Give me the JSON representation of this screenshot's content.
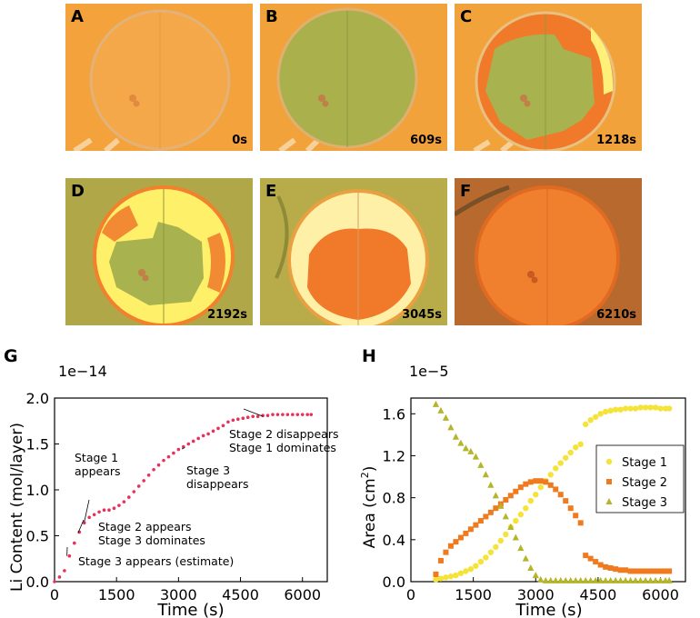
{
  "panels": [
    {
      "label": "A",
      "time": "0s"
    },
    {
      "label": "B",
      "time": "609s"
    },
    {
      "label": "C",
      "time": "1218s"
    },
    {
      "label": "D",
      "time": "2192s"
    },
    {
      "label": "E",
      "time": "3045s"
    },
    {
      "label": "F",
      "time": "6210s"
    }
  ],
  "colors": {
    "background_orange": "#f2a23a",
    "stage1": "#f5e33a",
    "stage2": "#f07a1e",
    "stage3": "#b5b52a",
    "liline": "#e8305a",
    "green_disk": "#a8b24e",
    "yellow_region": "#fff26a",
    "orange_disk": "#f07a2a"
  },
  "chart_data": [
    {
      "type": "scatter",
      "panel_label": "G",
      "exponent_label": "1e−14",
      "xlabel": "Time (s)",
      "ylabel": "Li Content (mol/layer)",
      "xlim": [
        0,
        6600
      ],
      "ylim": [
        0,
        2.0
      ],
      "xticks": [
        "0",
        "1500",
        "3000",
        "4500",
        "6000"
      ],
      "yticks": [
        "0.0",
        "0.5",
        "1.0",
        "1.5",
        "2.0"
      ],
      "series": [
        {
          "name": "Li content",
          "points": [
            [
              0,
              0.0
            ],
            [
              120,
              0.05
            ],
            [
              240,
              0.12
            ],
            [
              360,
              0.28
            ],
            [
              480,
              0.42
            ],
            [
              600,
              0.54
            ],
            [
              720,
              0.64
            ],
            [
              840,
              0.7
            ],
            [
              960,
              0.73
            ],
            [
              1080,
              0.76
            ],
            [
              1200,
              0.78
            ],
            [
              1320,
              0.78
            ],
            [
              1440,
              0.8
            ],
            [
              1560,
              0.83
            ],
            [
              1680,
              0.87
            ],
            [
              1800,
              0.92
            ],
            [
              1920,
              0.98
            ],
            [
              2040,
              1.04
            ],
            [
              2160,
              1.1
            ],
            [
              2280,
              1.16
            ],
            [
              2400,
              1.22
            ],
            [
              2520,
              1.27
            ],
            [
              2640,
              1.32
            ],
            [
              2760,
              1.36
            ],
            [
              2880,
              1.4
            ],
            [
              3000,
              1.44
            ],
            [
              3120,
              1.47
            ],
            [
              3240,
              1.5
            ],
            [
              3360,
              1.53
            ],
            [
              3480,
              1.56
            ],
            [
              3600,
              1.59
            ],
            [
              3720,
              1.61
            ],
            [
              3840,
              1.64
            ],
            [
              3960,
              1.67
            ],
            [
              4080,
              1.7
            ],
            [
              4200,
              1.74
            ],
            [
              4320,
              1.76
            ],
            [
              4440,
              1.77
            ],
            [
              4560,
              1.78
            ],
            [
              4680,
              1.79
            ],
            [
              4800,
              1.8
            ],
            [
              4920,
              1.8
            ],
            [
              5040,
              1.81
            ],
            [
              5160,
              1.81
            ],
            [
              5280,
              1.82
            ],
            [
              5400,
              1.82
            ],
            [
              5520,
              1.82
            ],
            [
              5640,
              1.82
            ],
            [
              5760,
              1.82
            ],
            [
              5880,
              1.82
            ],
            [
              6000,
              1.82
            ],
            [
              6120,
              1.82
            ],
            [
              6210,
              1.82
            ]
          ]
        }
      ],
      "annotations": [
        {
          "lines": [
            "Stage 1",
            "appears"
          ],
          "at": [
            720,
            0.65
          ]
        },
        {
          "lines": [
            "Stage 2 appears",
            "Stage 3 dominates"
          ],
          "at": [
            570,
            0.53
          ]
        },
        {
          "lines": [
            "Stage 3 appears (estimate)"
          ],
          "at": [
            300,
            0.28
          ]
        },
        {
          "lines": [
            "Stage 3",
            "disappears"
          ],
          "at": [
            3150,
            1.46
          ]
        },
        {
          "lines": [
            "Stage 2 disappears",
            "Stage 1 dominates"
          ],
          "at": [
            5050,
            1.8
          ]
        }
      ]
    },
    {
      "type": "scatter",
      "panel_label": "H",
      "exponent_label": "1e−5",
      "xlabel": "Time (s)",
      "ylabel": "Area (cm",
      "ylabel_sup": "2",
      "ylabel_end": ")",
      "xlim": [
        0,
        6600
      ],
      "ylim": [
        0,
        1.75
      ],
      "xticks": [
        "0",
        "1500",
        "3000",
        "4500",
        "6000"
      ],
      "yticks": [
        "0.0",
        "0.4",
        "0.8",
        "1.2",
        "1.6"
      ],
      "legend": "middle-right",
      "series": [
        {
          "name": "Stage 1",
          "marker": "circle",
          "points": [
            [
              600,
              0.02
            ],
            [
              720,
              0.03
            ],
            [
              840,
              0.04
            ],
            [
              960,
              0.05
            ],
            [
              1080,
              0.06
            ],
            [
              1200,
              0.08
            ],
            [
              1320,
              0.1
            ],
            [
              1440,
              0.12
            ],
            [
              1560,
              0.15
            ],
            [
              1680,
              0.19
            ],
            [
              1800,
              0.23
            ],
            [
              1920,
              0.28
            ],
            [
              2040,
              0.33
            ],
            [
              2160,
              0.39
            ],
            [
              2280,
              0.45
            ],
            [
              2400,
              0.52
            ],
            [
              2520,
              0.58
            ],
            [
              2640,
              0.64
            ],
            [
              2760,
              0.7
            ],
            [
              2880,
              0.77
            ],
            [
              3000,
              0.83
            ],
            [
              3120,
              0.9
            ],
            [
              3240,
              0.96
            ],
            [
              3360,
              1.02
            ],
            [
              3480,
              1.08
            ],
            [
              3600,
              1.13
            ],
            [
              3720,
              1.18
            ],
            [
              3840,
              1.23
            ],
            [
              3960,
              1.28
            ],
            [
              4080,
              1.31
            ],
            [
              4200,
              1.5
            ],
            [
              4320,
              1.54
            ],
            [
              4440,
              1.57
            ],
            [
              4560,
              1.6
            ],
            [
              4680,
              1.62
            ],
            [
              4800,
              1.63
            ],
            [
              4920,
              1.64
            ],
            [
              5040,
              1.64
            ],
            [
              5160,
              1.65
            ],
            [
              5280,
              1.65
            ],
            [
              5400,
              1.65
            ],
            [
              5520,
              1.66
            ],
            [
              5640,
              1.66
            ],
            [
              5760,
              1.66
            ],
            [
              5880,
              1.66
            ],
            [
              6000,
              1.65
            ],
            [
              6120,
              1.65
            ],
            [
              6210,
              1.65
            ]
          ]
        },
        {
          "name": "Stage 2",
          "marker": "square",
          "points": [
            [
              600,
              0.07
            ],
            [
              720,
              0.2
            ],
            [
              840,
              0.28
            ],
            [
              960,
              0.34
            ],
            [
              1080,
              0.38
            ],
            [
              1200,
              0.42
            ],
            [
              1320,
              0.46
            ],
            [
              1440,
              0.5
            ],
            [
              1560,
              0.54
            ],
            [
              1680,
              0.58
            ],
            [
              1800,
              0.62
            ],
            [
              1920,
              0.66
            ],
            [
              2040,
              0.7
            ],
            [
              2160,
              0.74
            ],
            [
              2280,
              0.78
            ],
            [
              2400,
              0.82
            ],
            [
              2520,
              0.86
            ],
            [
              2640,
              0.9
            ],
            [
              2760,
              0.93
            ],
            [
              2880,
              0.95
            ],
            [
              3000,
              0.96
            ],
            [
              3120,
              0.96
            ],
            [
              3240,
              0.95
            ],
            [
              3360,
              0.92
            ],
            [
              3480,
              0.88
            ],
            [
              3600,
              0.83
            ],
            [
              3720,
              0.77
            ],
            [
              3840,
              0.7
            ],
            [
              3960,
              0.63
            ],
            [
              4080,
              0.56
            ],
            [
              4200,
              0.25
            ],
            [
              4320,
              0.22
            ],
            [
              4440,
              0.19
            ],
            [
              4560,
              0.16
            ],
            [
              4680,
              0.14
            ],
            [
              4800,
              0.13
            ],
            [
              4920,
              0.12
            ],
            [
              5040,
              0.11
            ],
            [
              5160,
              0.11
            ],
            [
              5280,
              0.1
            ],
            [
              5400,
              0.1
            ],
            [
              5520,
              0.1
            ],
            [
              5640,
              0.1
            ],
            [
              5760,
              0.1
            ],
            [
              5880,
              0.1
            ],
            [
              6000,
              0.1
            ],
            [
              6120,
              0.1
            ],
            [
              6210,
              0.1
            ]
          ]
        },
        {
          "name": "Stage 3",
          "marker": "triangle",
          "points": [
            [
              600,
              1.69
            ],
            [
              720,
              1.63
            ],
            [
              840,
              1.56
            ],
            [
              960,
              1.47
            ],
            [
              1080,
              1.38
            ],
            [
              1200,
              1.32
            ],
            [
              1320,
              1.27
            ],
            [
              1440,
              1.24
            ],
            [
              1560,
              1.19
            ],
            [
              1680,
              1.11
            ],
            [
              1800,
              1.02
            ],
            [
              1920,
              0.92
            ],
            [
              2040,
              0.82
            ],
            [
              2160,
              0.72
            ],
            [
              2280,
              0.62
            ],
            [
              2400,
              0.52
            ],
            [
              2520,
              0.42
            ],
            [
              2640,
              0.32
            ],
            [
              2760,
              0.22
            ],
            [
              2880,
              0.13
            ],
            [
              3000,
              0.06
            ],
            [
              3120,
              0.02
            ],
            [
              3240,
              0.01
            ],
            [
              3360,
              0.01
            ],
            [
              3480,
              0.01
            ],
            [
              3600,
              0.01
            ],
            [
              3720,
              0.01
            ],
            [
              3840,
              0.01
            ],
            [
              3960,
              0.01
            ],
            [
              4080,
              0.01
            ],
            [
              4200,
              0.01
            ],
            [
              4320,
              0.01
            ],
            [
              4440,
              0.01
            ],
            [
              4560,
              0.01
            ],
            [
              4680,
              0.01
            ],
            [
              4800,
              0.01
            ],
            [
              4920,
              0.01
            ],
            [
              5040,
              0.01
            ],
            [
              5160,
              0.01
            ],
            [
              5280,
              0.01
            ],
            [
              5400,
              0.01
            ],
            [
              5520,
              0.01
            ],
            [
              5640,
              0.01
            ],
            [
              5760,
              0.01
            ],
            [
              5880,
              0.01
            ],
            [
              6000,
              0.01
            ],
            [
              6120,
              0.01
            ],
            [
              6210,
              0.01
            ]
          ]
        }
      ]
    }
  ]
}
